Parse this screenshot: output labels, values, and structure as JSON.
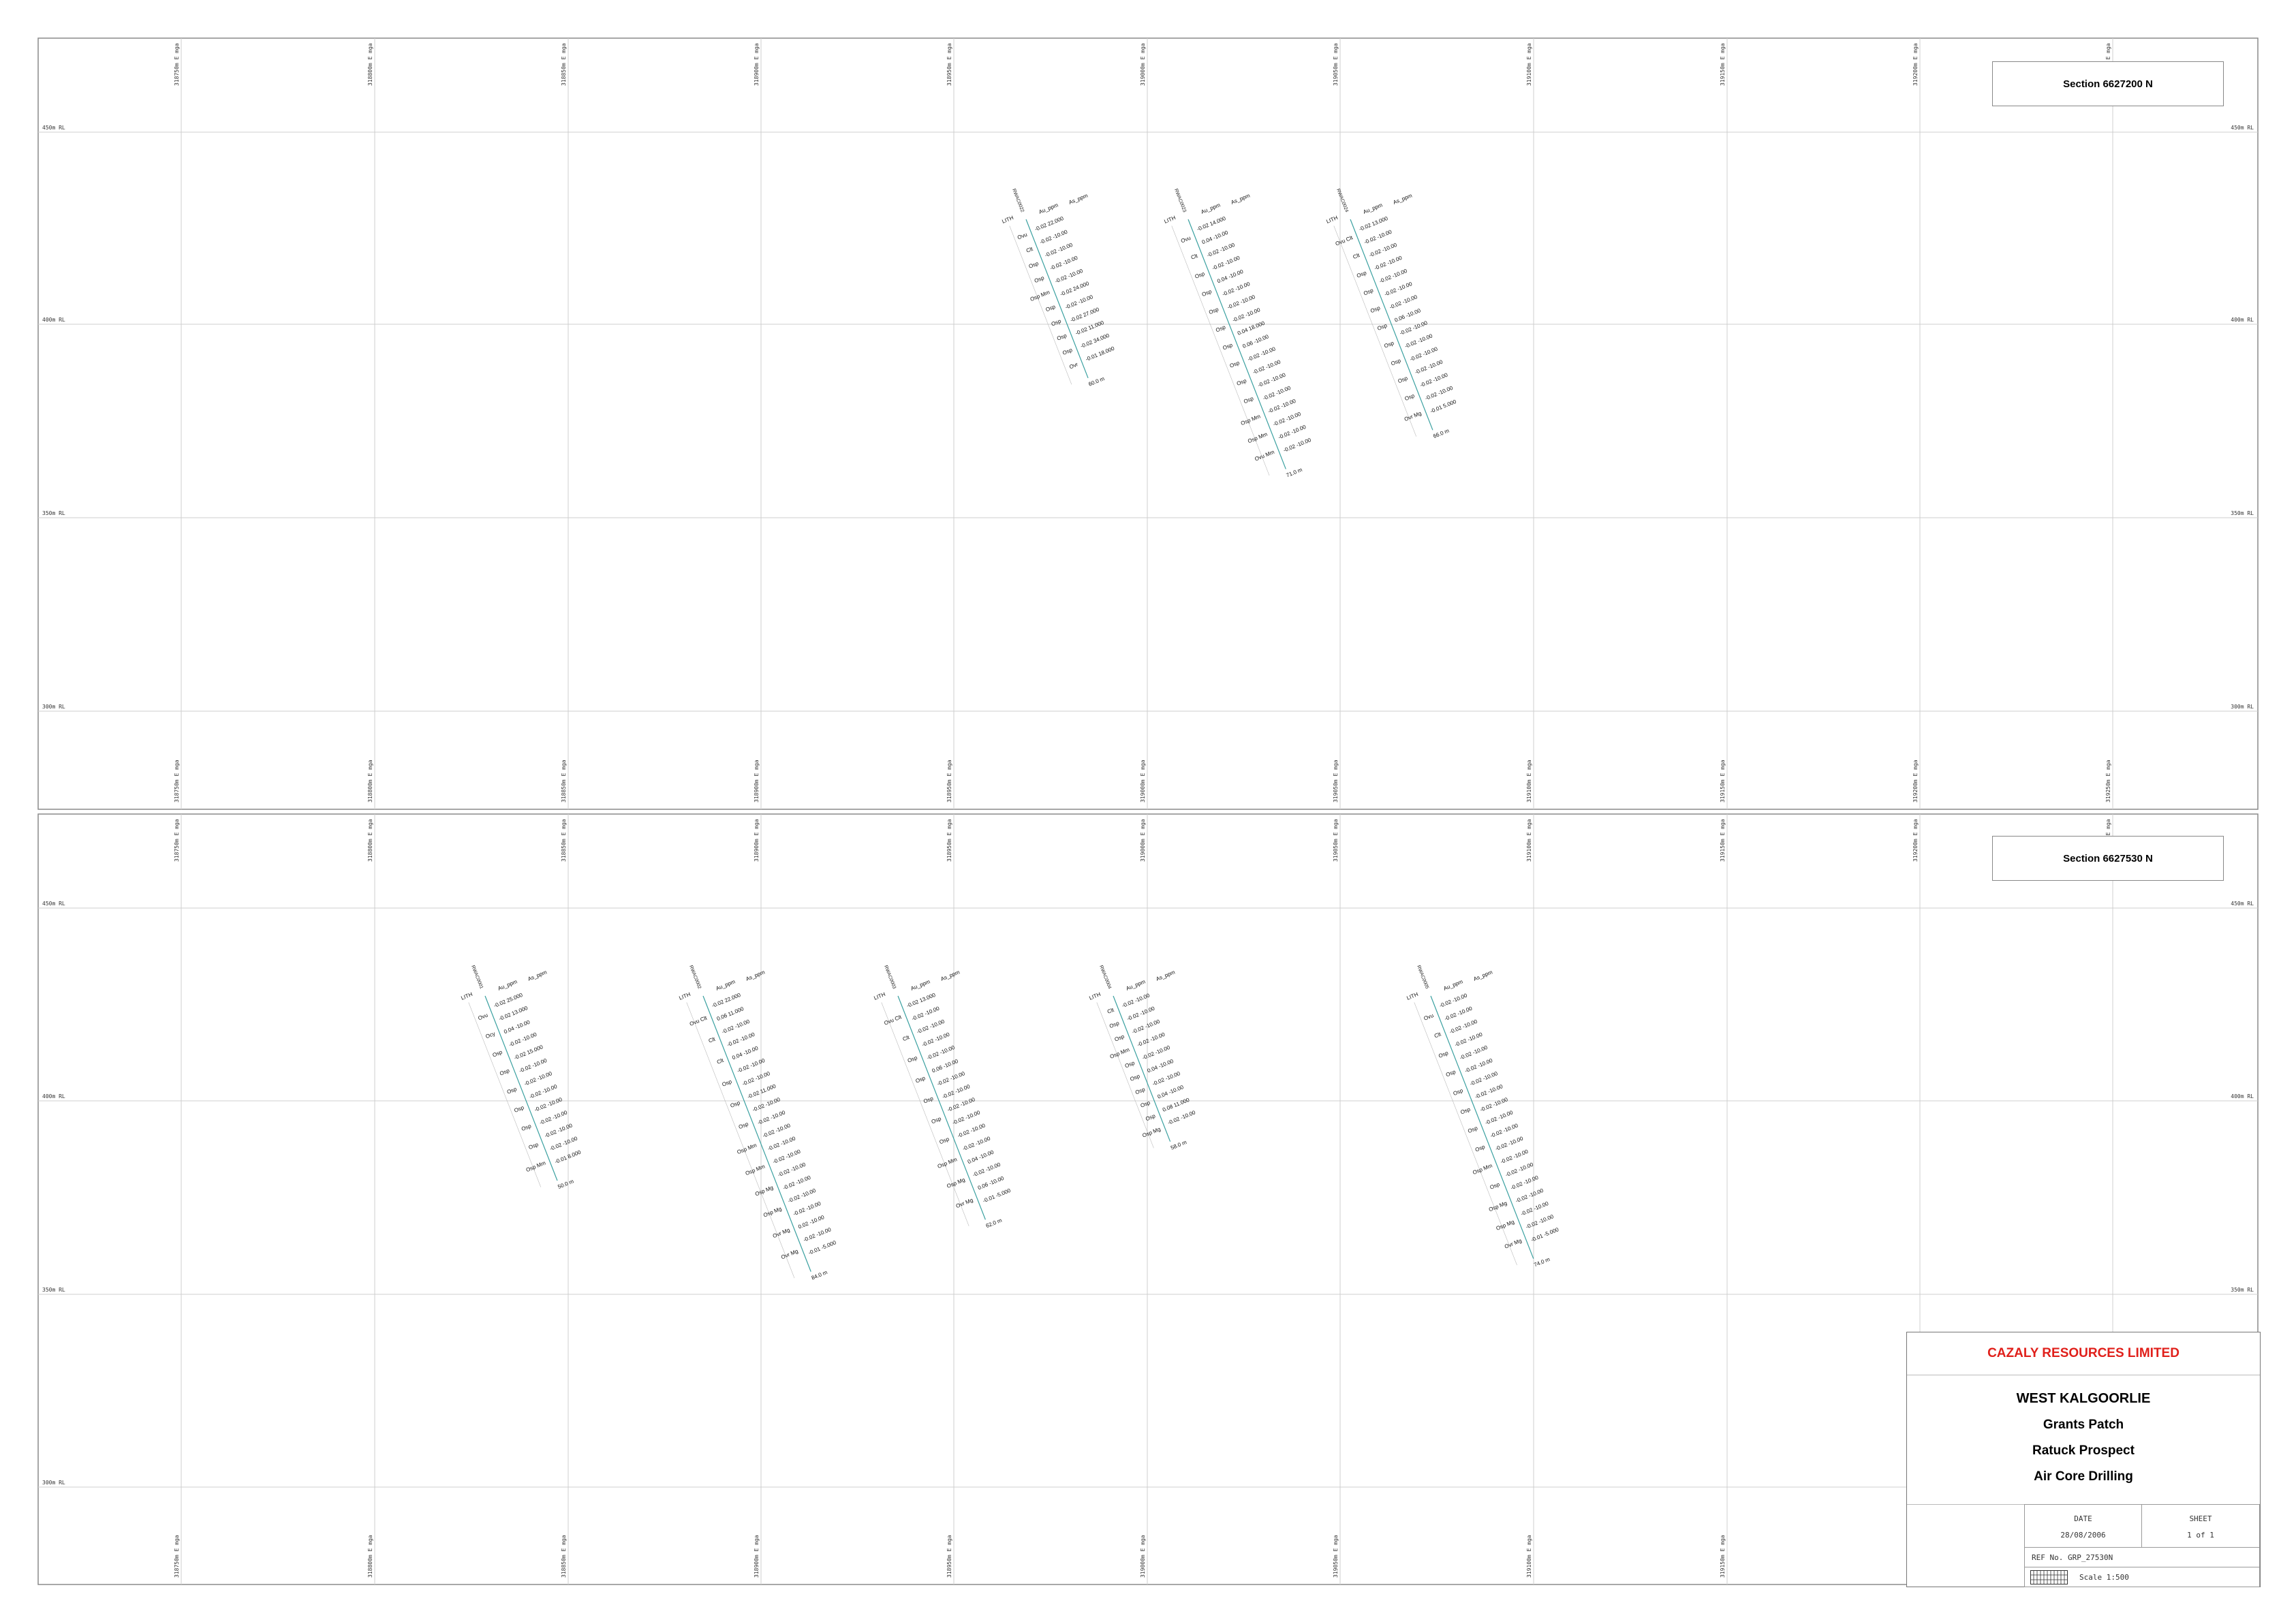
{
  "sections": [
    {
      "label": "Section 6627200 N",
      "easting_labels": [
        "318750m E mga",
        "318800m E mga",
        "318850m E mga",
        "318900m E mga",
        "318950m E mga",
        "319000m E mga",
        "319050m E mga",
        "319100m E mga",
        "319150m E mga",
        "319200m E mga",
        "319250m E mga"
      ],
      "rl_labels": [
        "450m RL",
        "400m RL",
        "350m RL",
        "300m RL"
      ],
      "holes": [
        {
          "id": "RWAC0022",
          "header": [
            "LITH",
            "Au_ppm",
            "As_ppm"
          ],
          "lith": [
            "Ovu",
            "Clt",
            "Osp",
            "Osp",
            "Osp Mm",
            "Osp",
            "Osp",
            "Osp",
            "Osp",
            "Ovr"
          ],
          "assays": [
            "-0.02 22.000",
            "-0.02 -10.00",
            "-0.02 -10.00",
            "-0.02 -10.00",
            "-0.02 -10.00",
            "-0.02 24.000",
            "-0.02 -10.00",
            "-0.02 27.000",
            "-0.02 11.000",
            "-0.02 34.000",
            "-0.01 18.000"
          ],
          "eoh": "60.0 m"
        },
        {
          "id": "RWAC0023",
          "header": [
            "LITH",
            "Au_ppm",
            "As_ppm"
          ],
          "lith": [
            "Ovu",
            "Clt",
            "Osp",
            "Osp",
            "Osp",
            "Osp",
            "Osp",
            "Osp",
            "Osp",
            "Osp",
            "Osp Mm",
            "Osp Mm",
            "Ovu Mm"
          ],
          "assays": [
            "-0.02 14.000",
            "0.04 -10.00",
            "-0.02 -10.00",
            "-0.02 -10.00",
            "0.04 -10.00",
            "-0.02 -10.00",
            "-0.02 -10.00",
            "-0.02 -10.00",
            "0.04 18.000",
            "0.06 -10.00",
            "-0.02 -10.00",
            "-0.02 -10.00",
            "-0.02 -10.00",
            "-0.02 -10.00",
            "-0.02 -10.00",
            "-0.02 -10.00",
            "-0.02 -10.00",
            "-0.02 -10.00"
          ],
          "eoh": "71.0 m"
        },
        {
          "id": "RWAC0024",
          "header": [
            "LITH",
            "Au_ppm",
            "As_ppm"
          ],
          "lith": [
            "Ovu Clt",
            "Clt",
            "Osp",
            "Osp",
            "Osp",
            "Osp",
            "Osp",
            "Osp",
            "Osp",
            "Osp",
            "Ovr Mg"
          ],
          "assays": [
            "-0.02 13.000",
            "-0.02 -10.00",
            "-0.02 -10.00",
            "-0.02 -10.00",
            "-0.02 -10.00",
            "-0.02 -10.00",
            "-0.02 -10.00",
            "0.06 -10.00",
            "-0.02 -10.00",
            "-0.02 -10.00",
            "-0.02 -10.00",
            "-0.02 -10.00",
            "-0.02 -10.00",
            "-0.02 -10.00",
            "-0.01 5.000"
          ],
          "eoh": "66.0 m"
        }
      ]
    },
    {
      "label": "Section 6627530 N",
      "easting_labels": [
        "318750m E mga",
        "318800m E mga",
        "318850m E mga",
        "318900m E mga",
        "318950m E mga",
        "319000m E mga",
        "319050m E mga",
        "319100m E mga",
        "319150m E mga",
        "319200m E mga",
        "319250m E mga"
      ],
      "rl_labels": [
        "450m RL",
        "400m RL",
        "350m RL",
        "300m RL"
      ],
      "holes": [
        {
          "id": "RWAC0001",
          "header": [
            "LITH",
            "Au_ppm",
            "As_ppm"
          ],
          "lith": [
            "Ovu",
            "Ocy",
            "Osp",
            "Osp",
            "Osp",
            "Osp",
            "Osp",
            "Osp",
            "Osp Mm"
          ],
          "assays": [
            "-0.02 25.000",
            "-0.02 13.000",
            "0.04 -10.00",
            "-0.02 -10.00",
            "-0.02 15.000",
            "-0.02 -10.00",
            "-0.02 -10.00",
            "-0.02 -10.00",
            "-0.02 -10.00",
            "-0.02 -10.00",
            "-0.02 -10.00",
            "-0.02 -10.00",
            "-0.01 8.000"
          ],
          "eoh": "50.0 m"
        },
        {
          "id": "RWAC0002",
          "header": [
            "LITH",
            "Au_ppm",
            "As_ppm"
          ],
          "lith": [
            "Ovu Clt",
            "Clt",
            "Clt",
            "Osp",
            "Osp",
            "Osp",
            "Osp Mm",
            "Osp Mm",
            "Osp Mg",
            "Osp Mg",
            "Ovr Mg",
            "Ovr Mg"
          ],
          "assays": [
            "-0.02 22.000",
            "0.06 11.000",
            "-0.02 -10.00",
            "-0.02 -10.00",
            "0.04 -10.00",
            "-0.02 -10.00",
            "-0.02 -10.00",
            "-0.02 11.000",
            "-0.02 -10.00",
            "-0.02 -10.00",
            "-0.02 -10.00",
            "-0.02 -10.00",
            "-0.02 -10.00",
            "-0.02 -10.00",
            "-0.02 -10.00",
            "-0.02 -10.00",
            "-0.02 -10.00",
            "0.02 -10.00",
            "-0.02 -10.00",
            "-0.01 -5.000"
          ],
          "eoh": "84.0 m"
        },
        {
          "id": "RWAC0003",
          "header": [
            "LITH",
            "Au_ppm",
            "As_ppm"
          ],
          "lith": [
            "Ovu Clt",
            "Clt",
            "Osp",
            "Osp",
            "Osp",
            "Osp",
            "Osp",
            "Osp Mm",
            "Osp Mg",
            "Ovr Mg"
          ],
          "assays": [
            "-0.02 13.000",
            "-0.02 -10.00",
            "-0.02 -10.00",
            "-0.02 -10.00",
            "-0.02 -10.00",
            "0.06 -10.00",
            "-0.02 -10.00",
            "-0.02 -10.00",
            "-0.02 -10.00",
            "-0.02 -10.00",
            "-0.02 -10.00",
            "-0.02 -10.00",
            "0.04 -10.00",
            "-0.02 -10.00",
            "0.06 -10.00",
            "-0.01 -5.000"
          ],
          "eoh": "62.0 m"
        },
        {
          "id": "RWAC0004",
          "header": [
            "LITH",
            "Au_ppm",
            "As_ppm"
          ],
          "lith": [
            "Clt",
            "Osp",
            "Osp",
            "Osp Mm",
            "Osp",
            "Osp",
            "Osp",
            "Osp",
            "Osp",
            "Osp Mg"
          ],
          "assays": [
            "-0.02 -10.00",
            "-0.02 -10.00",
            "-0.02 -10.00",
            "-0.02 -10.00",
            "-0.02 -10.00",
            "0.04 -10.00",
            "-0.02 -10.00",
            "0.04 -10.00",
            "0.08 11.000",
            "-0.02 -10.00"
          ],
          "eoh": "58.0 m"
        },
        {
          "id": "RWAC0005",
          "header": [
            "LITH",
            "Au_ppm",
            "As_ppm"
          ],
          "lith": [
            "Ovu",
            "Clt",
            "Osp",
            "Osp",
            "Osp",
            "Osp",
            "Osp",
            "Osp",
            "Osp Mm",
            "Osp",
            "Osp Mg",
            "Osp Mg",
            "Ovr Mg"
          ],
          "assays": [
            "-0.02 -10.00",
            "-0.02 -10.00",
            "-0.02 -10.00",
            "-0.02 -10.00",
            "-0.02 -10.00",
            "-0.02 -10.00",
            "-0.02 -10.00",
            "-0.02 -10.00",
            "-0.02 -10.00",
            "-0.02 -10.00",
            "-0.02 -10.00",
            "-0.02 -10.00",
            "-0.02 -10.00",
            "-0.02 -10.00",
            "-0.02 -10.00",
            "-0.02 -10.00",
            "-0.02 -10.00",
            "-0.02 -10.00",
            "-0.01 -5.000"
          ],
          "eoh": "74.0 m"
        }
      ]
    }
  ],
  "title_block": {
    "company": "CAZALY RESOURCES LIMITED",
    "project": "WEST KALGOORLIE",
    "line2": "Grants Patch",
    "line3": "Ratuck Prospect",
    "line4": "Air Core Drilling",
    "date_label": "DATE",
    "date_value": "28/08/2006",
    "sheet_label": "SHEET",
    "sheet_value": "1 of 1",
    "ref_label": "REF No. GRP_27530N",
    "scale_label": "Scale 1:500"
  },
  "colors": {
    "company": "#e0201b",
    "grid": "#cfcfcf",
    "frame": "#8a8a8a",
    "trace": "#3aa0a0"
  }
}
